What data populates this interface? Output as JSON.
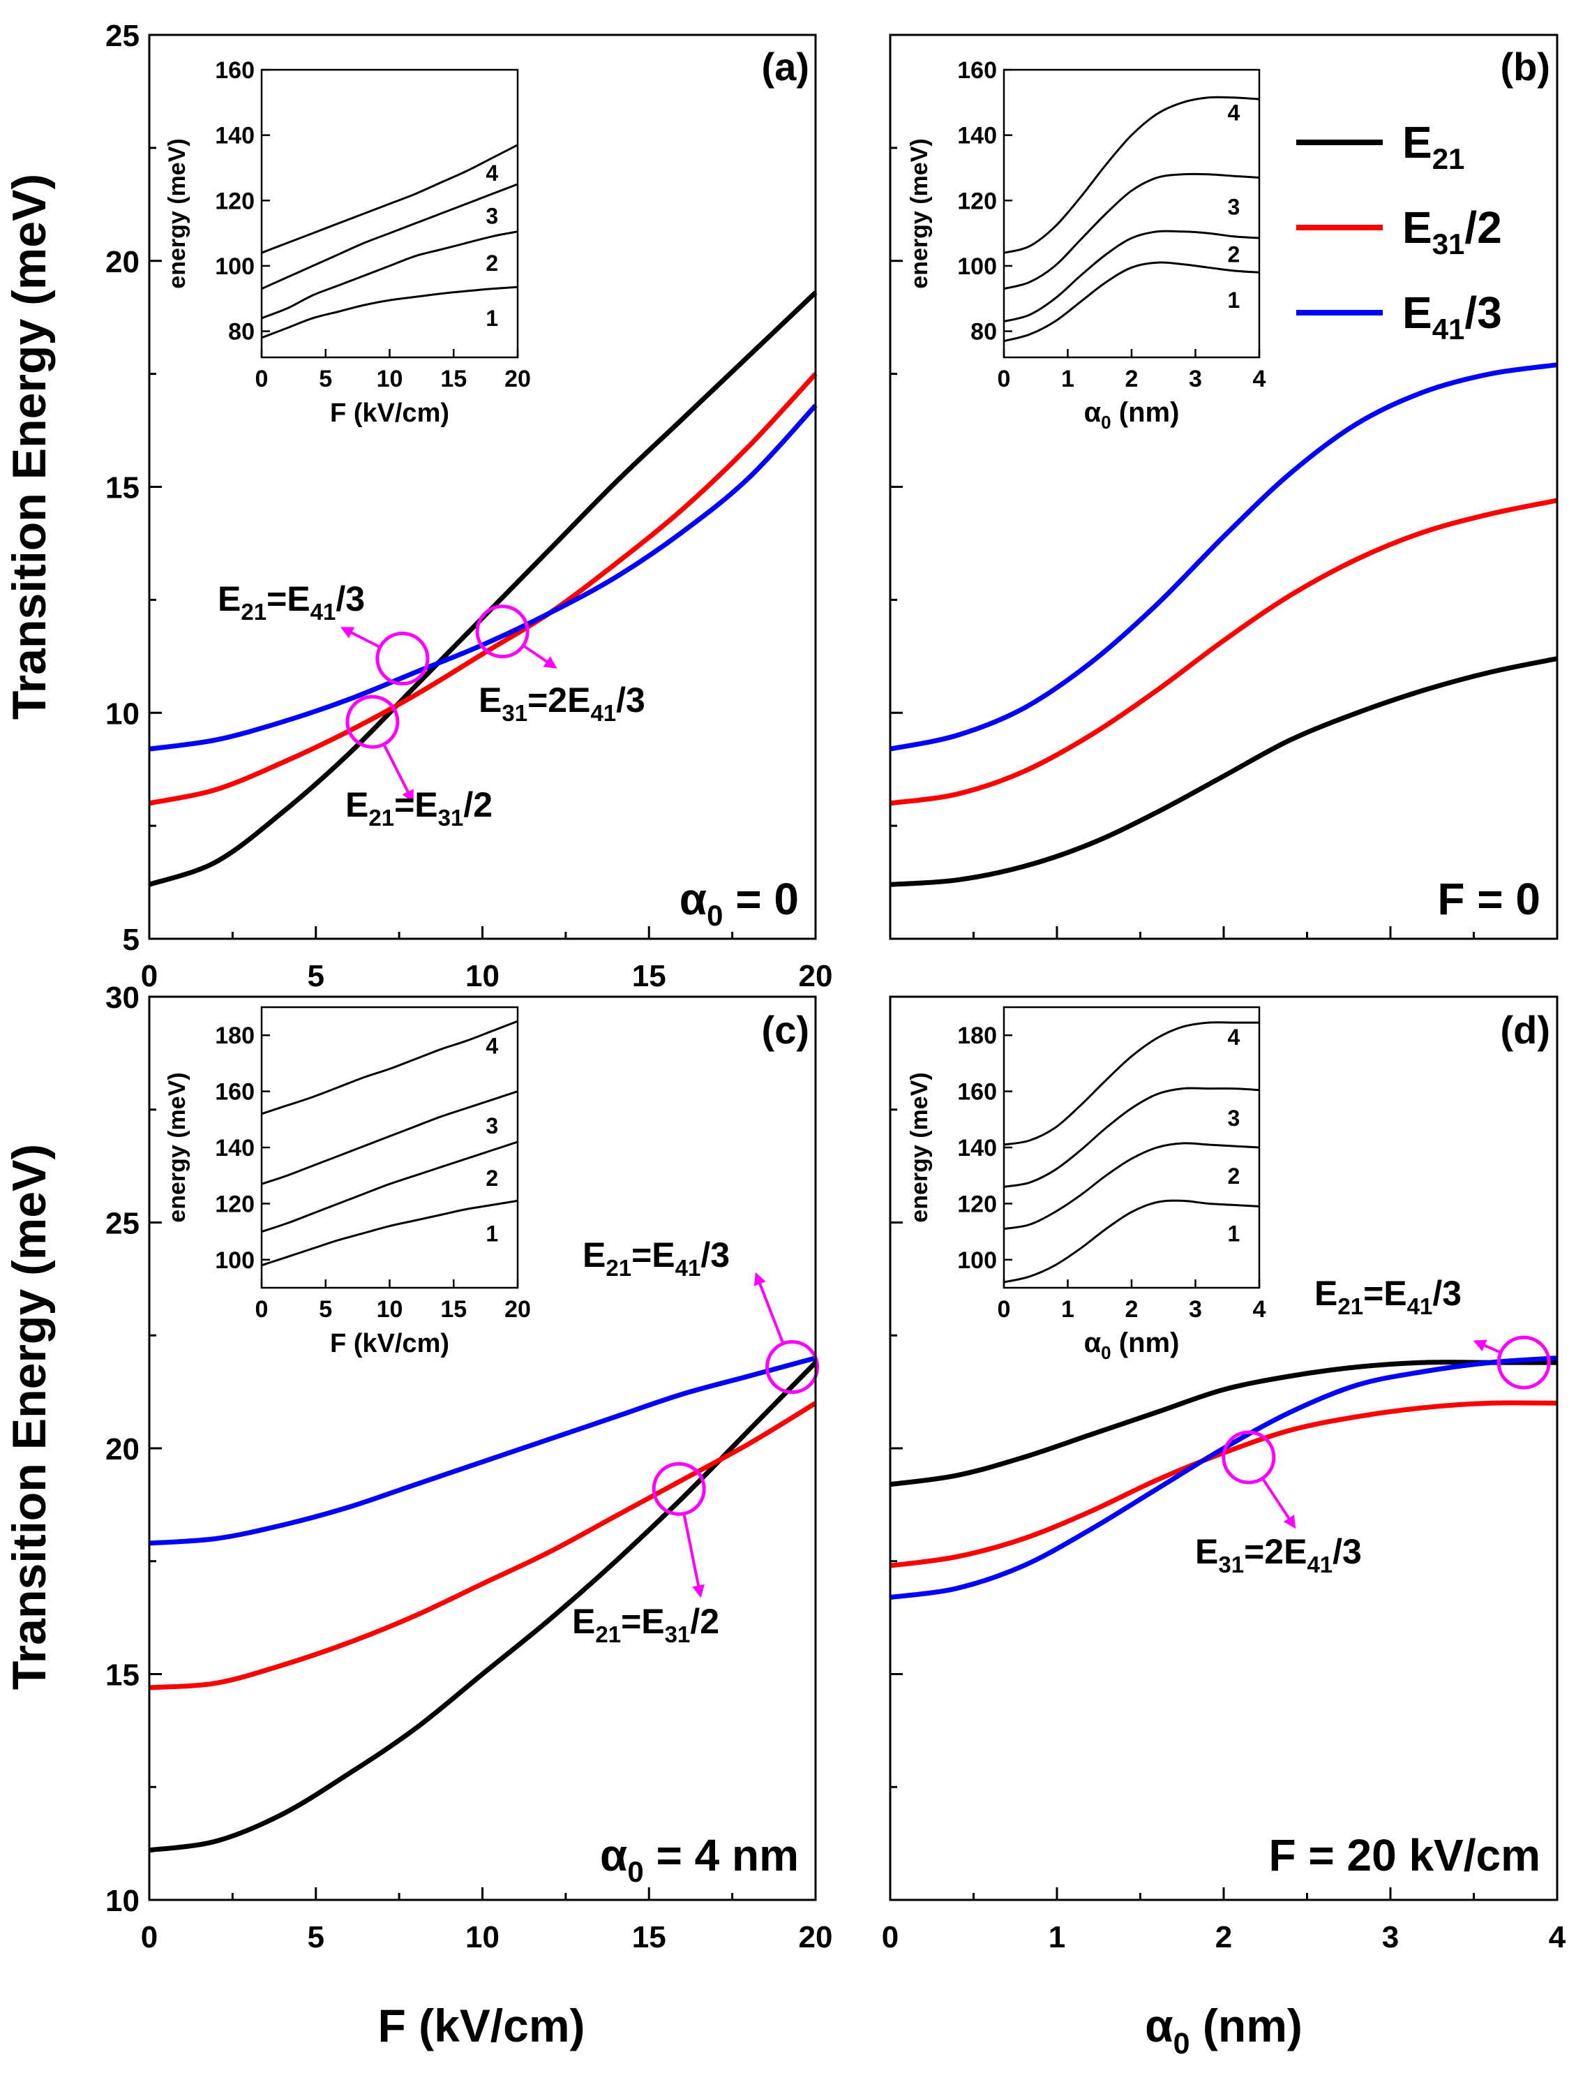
{
  "figure": {
    "ylabel": "Transition Energy (meV)",
    "xlabel_left": "F (kV/cm)",
    "xlabel_right_main": "α",
    "xlabel_right_sub": "0",
    "xlabel_right_tail": " (nm)"
  },
  "legend": [
    {
      "main": "E",
      "sub": "21",
      "tail": "",
      "color": "#000000"
    },
    {
      "main": "E",
      "sub": "31",
      "tail": "/2",
      "color": "#ff0000"
    },
    {
      "main": "E",
      "sub": "41",
      "tail": "/3",
      "color": "#0000ff"
    }
  ],
  "colors": {
    "e21": "#000000",
    "e31": "#ff0000",
    "e41": "#0000ff",
    "marker": "#ff00ff"
  },
  "chart_data": [
    {
      "panel": "a",
      "type": "line",
      "label": "(a)",
      "condition": {
        "main": "α",
        "sub": "0",
        "tail": " = 0"
      },
      "xlim": [
        0,
        20
      ],
      "ylim": [
        5,
        25
      ],
      "xticks": [
        "0",
        "5",
        "10",
        "15",
        "20"
      ],
      "yticks": [
        "5",
        "10",
        "15",
        "20",
        "25"
      ],
      "series": [
        {
          "name": "E21",
          "x": [
            0,
            2,
            4,
            6,
            8,
            10,
            12,
            14,
            16,
            18,
            20
          ],
          "y": [
            6.2,
            6.7,
            7.8,
            9.1,
            10.6,
            12.1,
            13.6,
            15.1,
            16.5,
            17.9,
            19.3
          ]
        },
        {
          "name": "E31/2",
          "x": [
            0,
            2,
            4,
            6,
            8,
            10,
            12,
            14,
            16,
            18,
            20
          ],
          "y": [
            8.0,
            8.3,
            8.9,
            9.6,
            10.4,
            11.3,
            12.2,
            13.3,
            14.5,
            15.9,
            17.5
          ]
        },
        {
          "name": "E41/3",
          "x": [
            0,
            2,
            4,
            6,
            8,
            10,
            12,
            14,
            16,
            18,
            20
          ],
          "y": [
            9.2,
            9.4,
            9.8,
            10.3,
            10.9,
            11.5,
            12.2,
            13.0,
            14.0,
            15.2,
            16.8
          ]
        }
      ],
      "annotations": [
        {
          "text_main": "E",
          "text_sub": "21",
          "text_tail": "=E",
          "text_sub2": "41",
          "text_tail2": "/3",
          "circle_x": 7.6,
          "circle_y": 11.2,
          "arrow_to_x": 6.0,
          "arrow_to_y": 11.8
        },
        {
          "text_main": "E",
          "text_sub": "31",
          "text_tail": "=2E",
          "text_sub2": "41",
          "text_tail2": "/3",
          "circle_x": 10.6,
          "circle_y": 11.8,
          "arrow_to_x": 12.0,
          "arrow_to_y": 11.1
        },
        {
          "text_main": "E",
          "text_sub": "21",
          "text_tail": "=E",
          "text_sub2": "31",
          "text_tail2": "/2",
          "circle_x": 6.7,
          "circle_y": 9.8,
          "arrow_to_x": 7.8,
          "arrow_to_y": 8.2
        }
      ],
      "inset": {
        "xlabel": "F (kV/cm)",
        "ylabel": "energy (meV)",
        "xlim": [
          0,
          20
        ],
        "ylim": [
          72,
          160
        ],
        "xticks": [
          "0",
          "5",
          "10",
          "15",
          "20"
        ],
        "yticks": [
          "80",
          "100",
          "120",
          "140",
          "160"
        ],
        "curves": [
          {
            "label": "1",
            "y": [
              78,
              81,
              84,
              86,
              88,
              89.5,
              90.5,
              91.5,
              92.3,
              93,
              93.5
            ]
          },
          {
            "label": "2",
            "y": [
              84,
              87,
              91,
              94,
              97,
              100,
              103,
              105,
              107,
              109,
              110.5
            ]
          },
          {
            "label": "3",
            "y": [
              93,
              96.5,
              100,
              103.5,
              107,
              110,
              113,
              116,
              119,
              122,
              125
            ]
          },
          {
            "label": "4",
            "y": [
              104,
              107,
              110,
              113,
              116,
              119,
              122,
              125.5,
              129,
              133,
              137
            ]
          }
        ]
      }
    },
    {
      "panel": "b",
      "type": "line",
      "label": "(b)",
      "condition": {
        "main": "F",
        "sub": "",
        "tail": " = 0"
      },
      "xlim": [
        0,
        4
      ],
      "ylim": [
        5,
        25
      ],
      "xticks": [],
      "yticks": [],
      "series": [
        {
          "name": "E21",
          "x": [
            0,
            0.4,
            0.8,
            1.2,
            1.6,
            2.0,
            2.4,
            2.8,
            3.2,
            3.6,
            4.0
          ],
          "y": [
            6.2,
            6.3,
            6.6,
            7.1,
            7.8,
            8.6,
            9.4,
            10.0,
            10.5,
            10.9,
            11.2
          ]
        },
        {
          "name": "E31/2",
          "x": [
            0,
            0.4,
            0.8,
            1.2,
            1.6,
            2.0,
            2.4,
            2.8,
            3.2,
            3.6,
            4.0
          ],
          "y": [
            8.0,
            8.2,
            8.7,
            9.5,
            10.5,
            11.6,
            12.6,
            13.4,
            14.0,
            14.4,
            14.7
          ]
        },
        {
          "name": "E41/3",
          "x": [
            0,
            0.4,
            0.8,
            1.2,
            1.6,
            2.0,
            2.4,
            2.8,
            3.2,
            3.6,
            4.0
          ],
          "y": [
            9.2,
            9.5,
            10.1,
            11.1,
            12.4,
            13.9,
            15.3,
            16.4,
            17.1,
            17.5,
            17.7
          ]
        }
      ],
      "annotations": [],
      "inset": {
        "xlabel_main": "α",
        "xlabel_sub": "0",
        "xlabel_tail": " (nm)",
        "ylabel": "energy (meV)",
        "xlim": [
          0,
          4
        ],
        "ylim": [
          72,
          160
        ],
        "xticks": [
          "0",
          "1",
          "2",
          "3",
          "4"
        ],
        "yticks": [
          "80",
          "100",
          "120",
          "140",
          "160"
        ],
        "curves": [
          {
            "label": "1",
            "y": [
              77,
              79,
              83,
              89,
              95,
              99.5,
              101,
              100.5,
              99.5,
              98.5,
              98
            ]
          },
          {
            "label": "2",
            "y": [
              83,
              85,
              90,
              97,
              103.5,
              108.5,
              110.5,
              110.5,
              110,
              109,
              108.5
            ]
          },
          {
            "label": "3",
            "y": [
              93,
              95,
              100,
              108,
              116,
              123,
              127,
              128,
              128,
              127.5,
              127
            ]
          },
          {
            "label": "4",
            "y": [
              104,
              106,
              112,
              121,
              131,
              140,
              146.5,
              150,
              151.5,
              151.5,
              151
            ]
          }
        ]
      }
    },
    {
      "panel": "c",
      "type": "line",
      "label": "(c)",
      "condition": {
        "main": "α",
        "sub": "0",
        "tail": " = 4 nm"
      },
      "xlim": [
        0,
        20
      ],
      "ylim": [
        10,
        30
      ],
      "xticks": [
        "0",
        "5",
        "10",
        "15",
        "20"
      ],
      "yticks": [
        "10",
        "15",
        "20",
        "25",
        "30"
      ],
      "series": [
        {
          "name": "E21",
          "x": [
            0,
            2,
            4,
            6,
            8,
            10,
            12,
            14,
            16,
            18,
            20
          ],
          "y": [
            11.1,
            11.3,
            11.9,
            12.8,
            13.8,
            15.0,
            16.2,
            17.5,
            18.9,
            20.4,
            21.9
          ]
        },
        {
          "name": "E31/2",
          "x": [
            0,
            2,
            4,
            6,
            8,
            10,
            12,
            14,
            16,
            18,
            20
          ],
          "y": [
            14.7,
            14.8,
            15.2,
            15.7,
            16.3,
            17.0,
            17.7,
            18.5,
            19.3,
            20.1,
            21.0
          ]
        },
        {
          "name": "E41/3",
          "x": [
            0,
            2,
            4,
            6,
            8,
            10,
            12,
            14,
            16,
            18,
            20
          ],
          "y": [
            17.9,
            18.0,
            18.3,
            18.7,
            19.2,
            19.7,
            20.2,
            20.7,
            21.2,
            21.6,
            22.0
          ]
        }
      ],
      "annotations": [
        {
          "text_main": "E",
          "text_sub": "21",
          "text_tail": "=E",
          "text_sub2": "41",
          "text_tail2": "/3",
          "circle_x": 19.3,
          "circle_y": 21.8,
          "arrow_to_x": 18.3,
          "arrow_to_y": 23.7
        },
        {
          "text_main": "E",
          "text_sub": "21",
          "text_tail": "=E",
          "text_sub2": "31",
          "text_tail2": "/2",
          "circle_x": 15.9,
          "circle_y": 19.1,
          "arrow_to_x": 16.5,
          "arrow_to_y": 16.9
        }
      ],
      "inset": {
        "xlabel": "F (kV/cm)",
        "ylabel": "energy (meV)",
        "xlim": [
          0,
          20
        ],
        "ylim": [
          90,
          190
        ],
        "xticks": [
          "0",
          "5",
          "10",
          "15",
          "20"
        ],
        "yticks": [
          "100",
          "120",
          "140",
          "160",
          "180"
        ],
        "curves": [
          {
            "label": "1",
            "y": [
              98,
              101,
              104,
              107,
              109.5,
              112,
              114,
              116,
              118,
              119.5,
              121
            ]
          },
          {
            "label": "2",
            "y": [
              110,
              113,
              116.5,
              120,
              123.5,
              127,
              130,
              133,
              136,
              139,
              142
            ]
          },
          {
            "label": "3",
            "y": [
              127,
              130,
              133.5,
              137,
              140.5,
              144,
              147.5,
              151,
              154,
              157,
              160
            ]
          },
          {
            "label": "4",
            "y": [
              152,
              155,
              158,
              161.5,
              165,
              168,
              171.5,
              175,
              178,
              181.5,
              185
            ]
          }
        ]
      }
    },
    {
      "panel": "d",
      "type": "line",
      "label": "(d)",
      "condition": {
        "main": "F",
        "sub": "",
        "tail": " = 20 kV/cm"
      },
      "xlim": [
        0,
        4
      ],
      "ylim": [
        10,
        30
      ],
      "xticks": [
        "0",
        "1",
        "2",
        "3",
        "4"
      ],
      "yticks": [],
      "series": [
        {
          "name": "E21",
          "x": [
            0,
            0.4,
            0.8,
            1.2,
            1.6,
            2.0,
            2.4,
            2.8,
            3.2,
            3.6,
            4.0
          ],
          "y": [
            19.2,
            19.4,
            19.8,
            20.3,
            20.8,
            21.3,
            21.6,
            21.8,
            21.9,
            21.9,
            21.9
          ]
        },
        {
          "name": "E31/2",
          "x": [
            0,
            0.4,
            0.8,
            1.2,
            1.6,
            2.0,
            2.4,
            2.8,
            3.2,
            3.6,
            4.0
          ],
          "y": [
            17.4,
            17.6,
            18.0,
            18.6,
            19.3,
            19.9,
            20.4,
            20.7,
            20.9,
            21.0,
            21.0
          ]
        },
        {
          "name": "E41/3",
          "x": [
            0,
            0.4,
            0.8,
            1.2,
            1.6,
            2.0,
            2.4,
            2.8,
            3.2,
            3.6,
            4.0
          ],
          "y": [
            16.7,
            16.9,
            17.4,
            18.2,
            19.1,
            20.0,
            20.8,
            21.4,
            21.7,
            21.9,
            22.0
          ]
        }
      ],
      "annotations": [
        {
          "text_main": "E",
          "text_sub": "21",
          "text_tail": "=E",
          "text_sub2": "41",
          "text_tail2": "/3",
          "circle_x": 3.8,
          "circle_y": 21.9,
          "arrow_to_x": 3.55,
          "arrow_to_y": 22.3
        },
        {
          "text_main": "E",
          "text_sub": "31",
          "text_tail": "=2E",
          "text_sub2": "41",
          "text_tail2": "/3",
          "circle_x": 2.15,
          "circle_y": 19.8,
          "arrow_to_x": 2.4,
          "arrow_to_y": 18.4
        }
      ],
      "inset": {
        "xlabel_main": "α",
        "xlabel_sub": "0",
        "xlabel_tail": " (nm)",
        "ylabel": "energy (meV)",
        "xlim": [
          0,
          4
        ],
        "ylim": [
          90,
          190
        ],
        "xticks": [
          "0",
          "1",
          "2",
          "3",
          "4"
        ],
        "yticks": [
          "100",
          "120",
          "140",
          "160",
          "180"
        ],
        "curves": [
          {
            "label": "1",
            "y": [
              92,
              94,
              98,
              104,
              111,
              117,
              120.5,
              121,
              120,
              119.5,
              119
            ]
          },
          {
            "label": "2",
            "y": [
              111,
              112.5,
              117,
              123,
              130,
              136,
              140,
              141.5,
              141,
              140.5,
              140
            ]
          },
          {
            "label": "3",
            "y": [
              126,
              127.5,
              132,
              139,
              147,
              154,
              159,
              161,
              161,
              161,
              160.5
            ]
          },
          {
            "label": "4",
            "y": [
              141,
              142.5,
              147,
              155,
              164,
              172.5,
              179,
              183,
              184.5,
              184.5,
              184.5
            ]
          }
        ]
      }
    }
  ]
}
